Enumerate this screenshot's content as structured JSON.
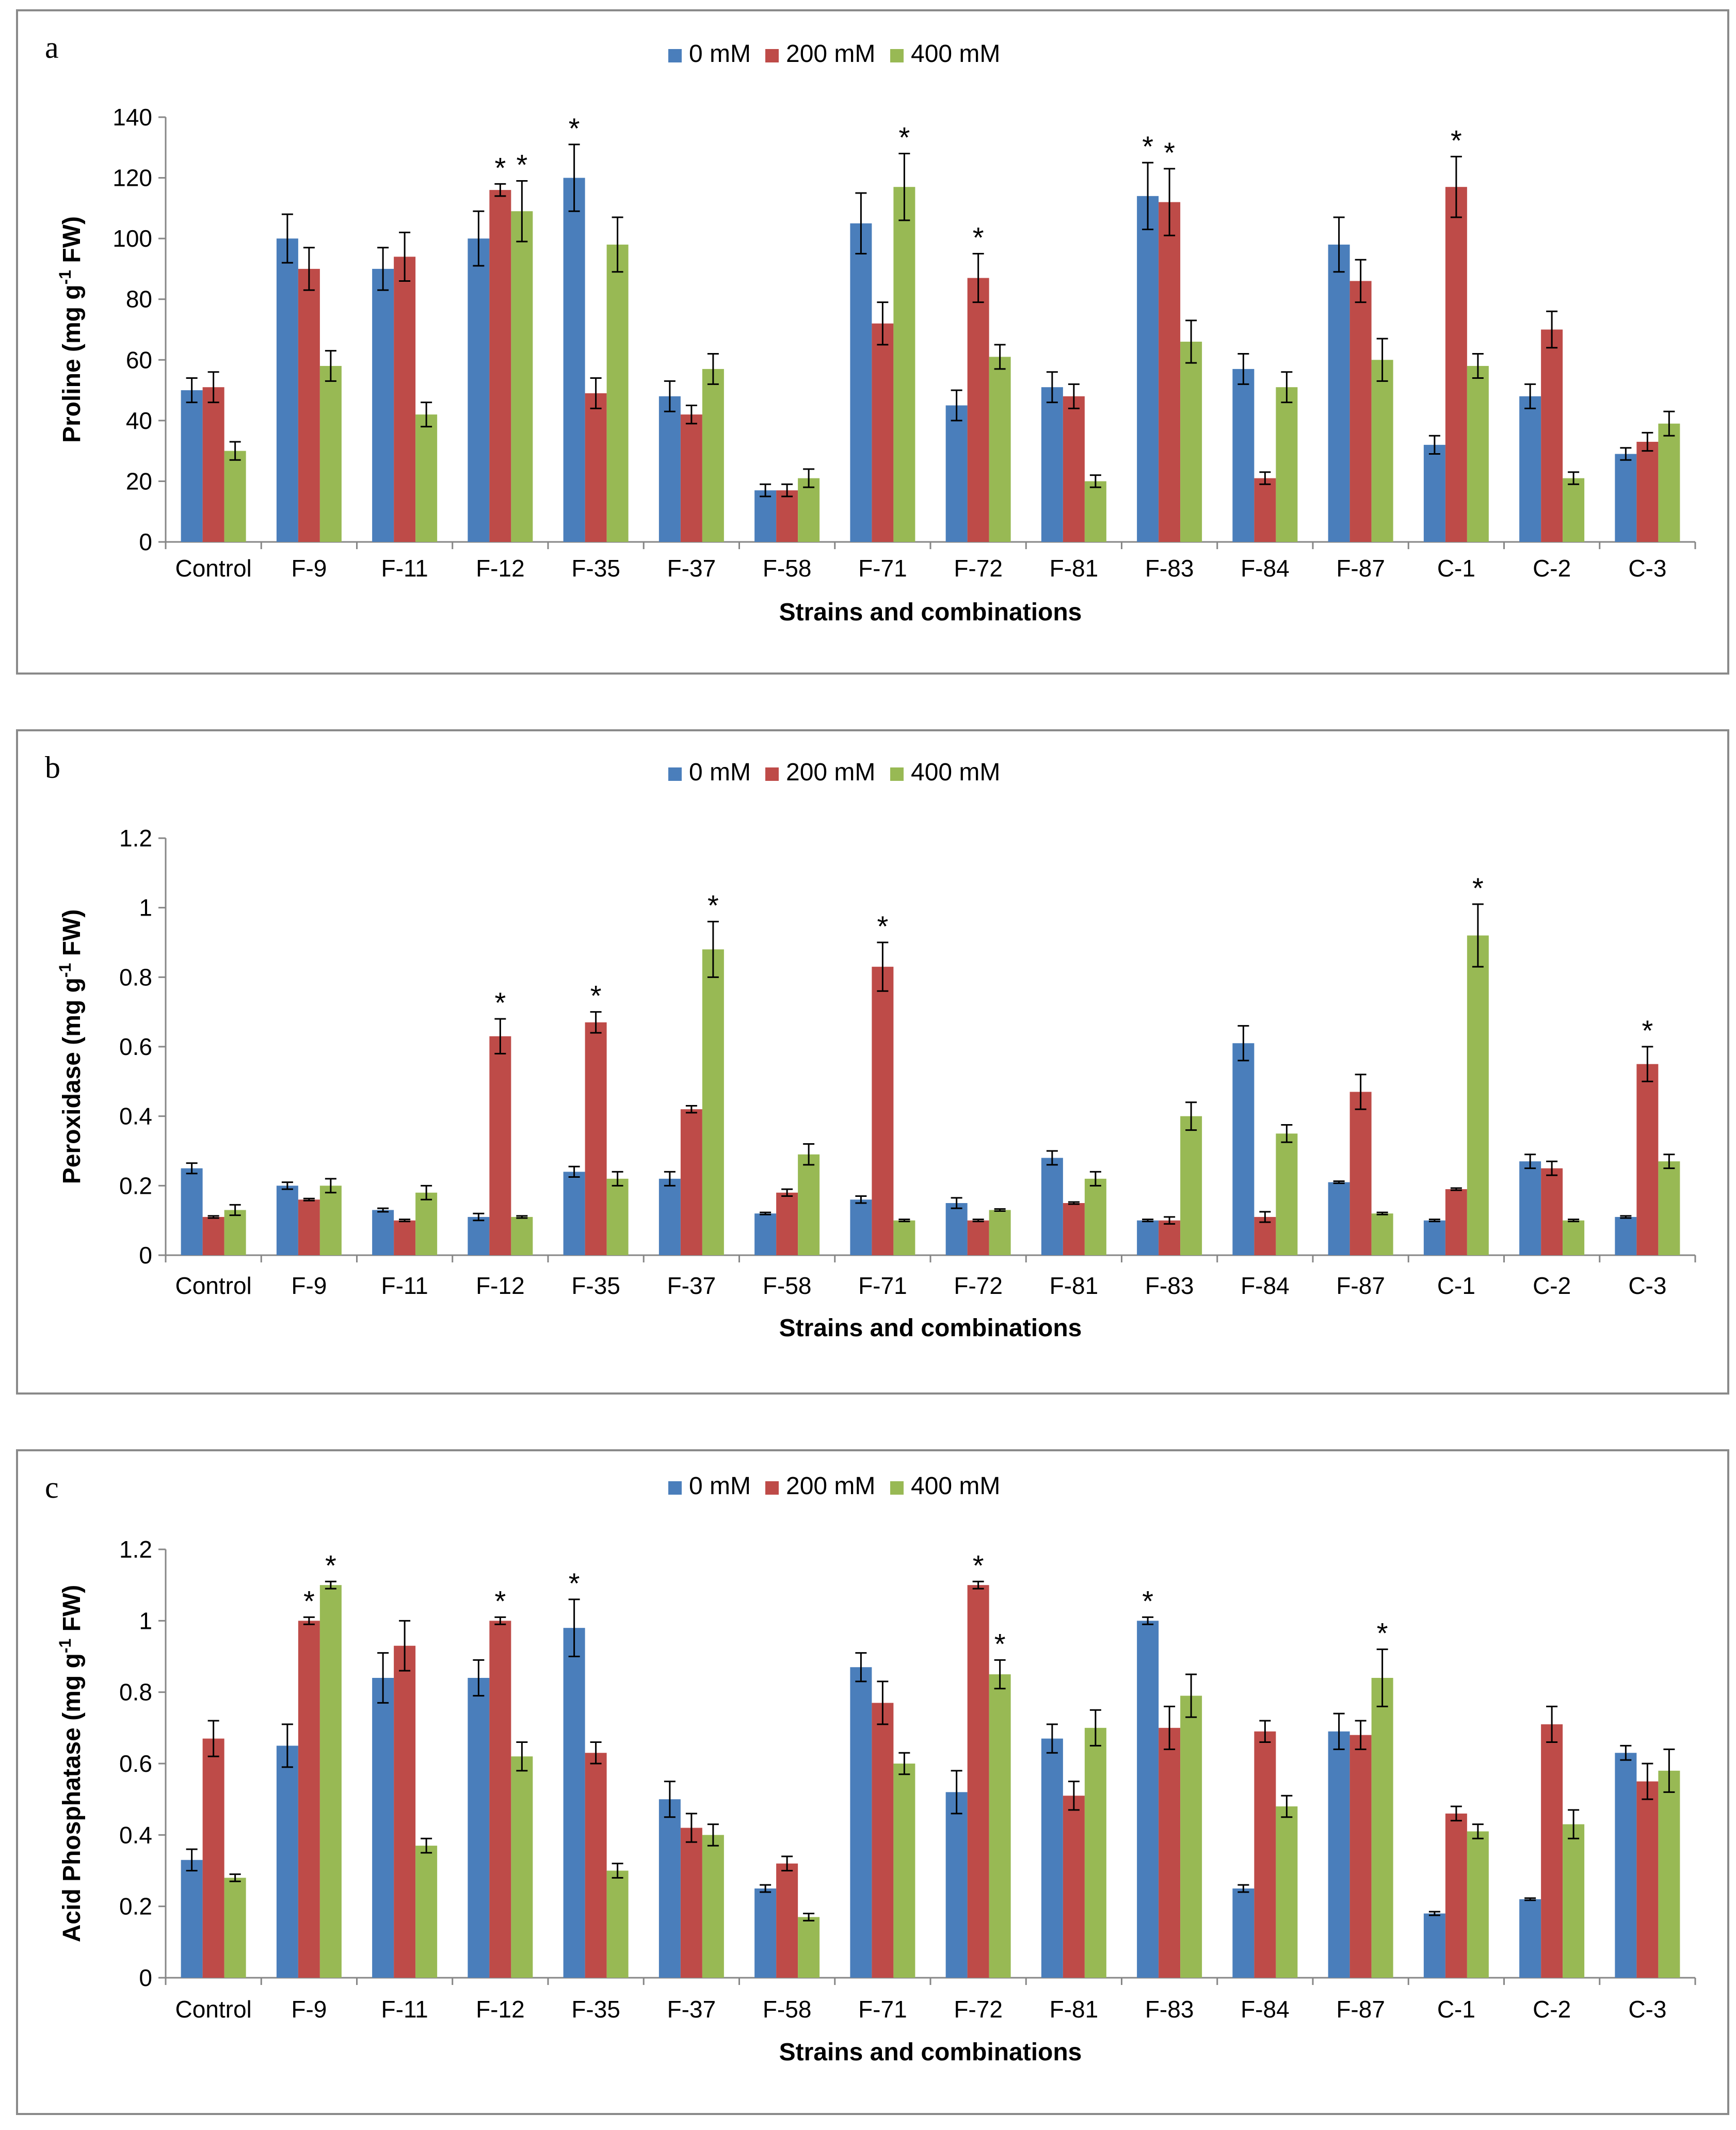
{
  "colors": {
    "series": [
      "#4a7ebb",
      "#be4b48",
      "#98b954"
    ],
    "axis": "#868686",
    "error": "#000000"
  },
  "chart_data": [
    {
      "type": "bar",
      "panel_label": "a",
      "title": "",
      "xlabel": "Strains and combinations",
      "ylabel_main": "Proline (mg g",
      "ylabel_sup": "-1",
      "ylabel_tail": " FW)",
      "ylim": [
        0,
        140
      ],
      "yticks": [
        0,
        20,
        40,
        60,
        80,
        100,
        120,
        140
      ],
      "ytick_labels": [
        "0",
        "20",
        "40",
        "60",
        "80",
        "100",
        "120",
        "140"
      ],
      "categories": [
        "Control",
        "F-9",
        "F-11",
        "F-12",
        "F-35",
        "F-37",
        "F-58",
        "F-71",
        "F-72",
        "F-81",
        "F-83",
        "F-84",
        "F-87",
        "C-1",
        "C-2",
        "C-3"
      ],
      "series": [
        {
          "name": "0 mM",
          "values": [
            50,
            100,
            90,
            100,
            120,
            48,
            17,
            105,
            45,
            51,
            114,
            57,
            98,
            32,
            48,
            29
          ],
          "errors": [
            4,
            8,
            7,
            9,
            11,
            5,
            2,
            10,
            5,
            5,
            11,
            5,
            9,
            3,
            4,
            2
          ]
        },
        {
          "name": "200 mM",
          "values": [
            51,
            90,
            94,
            116,
            49,
            42,
            17,
            72,
            87,
            48,
            112,
            21,
            86,
            117,
            70,
            33
          ],
          "errors": [
            5,
            7,
            8,
            2,
            5,
            3,
            2,
            7,
            8,
            4,
            11,
            2,
            7,
            10,
            6,
            3
          ]
        },
        {
          "name": "400 mM",
          "values": [
            30,
            58,
            42,
            109,
            98,
            57,
            21,
            117,
            61,
            20,
            66,
            51,
            60,
            58,
            21,
            39
          ],
          "errors": [
            3,
            5,
            4,
            10,
            9,
            5,
            3,
            11,
            4,
            2,
            7,
            5,
            7,
            4,
            2,
            4
          ]
        }
      ],
      "significance": [
        {
          "category": "F-12",
          "series": "200 mM",
          "label": "*"
        },
        {
          "category": "F-12",
          "series": "400 mM",
          "label": "*"
        },
        {
          "category": "F-35",
          "series": "0 mM",
          "label": "*"
        },
        {
          "category": "F-71",
          "series": "400 mM",
          "label": "*"
        },
        {
          "category": "F-72",
          "series": "200 mM",
          "label": "*"
        },
        {
          "category": "F-83",
          "series": "0 mM",
          "label": "*"
        },
        {
          "category": "F-83",
          "series": "200 mM",
          "label": "*"
        },
        {
          "category": "C-1",
          "series": "200 mM",
          "label": "*"
        }
      ]
    },
    {
      "type": "bar",
      "panel_label": "b",
      "title": "",
      "xlabel": "Strains and combinations",
      "ylabel_main": "Peroxidase (mg g",
      "ylabel_sup": "-1",
      "ylabel_tail": " FW)",
      "ylim": [
        0,
        1.2
      ],
      "yticks": [
        0,
        0.2,
        0.4,
        0.6,
        0.8,
        1.0,
        1.2
      ],
      "ytick_labels": [
        "0",
        "0.2",
        "0.4",
        "0.6",
        "0.8",
        "1",
        "1.2"
      ],
      "categories": [
        "Control",
        "F-9",
        "F-11",
        "F-12",
        "F-35",
        "F-37",
        "F-58",
        "F-71",
        "F-72",
        "F-81",
        "F-83",
        "F-84",
        "F-87",
        "C-1",
        "C-2",
        "C-3"
      ],
      "series": [
        {
          "name": "0 mM",
          "values": [
            0.25,
            0.2,
            0.13,
            0.11,
            0.24,
            0.22,
            0.12,
            0.16,
            0.15,
            0.28,
            0.1,
            0.61,
            0.21,
            0.1,
            0.27,
            0.11
          ],
          "errors": [
            0.015,
            0.01,
            0.005,
            0.01,
            0.015,
            0.02,
            0.003,
            0.01,
            0.015,
            0.02,
            0.003,
            0.05,
            0.003,
            0.003,
            0.02,
            0.003
          ]
        },
        {
          "name": "200 mM",
          "values": [
            0.11,
            0.16,
            0.1,
            0.63,
            0.67,
            0.42,
            0.18,
            0.83,
            0.1,
            0.15,
            0.1,
            0.11,
            0.47,
            0.19,
            0.25,
            0.55
          ],
          "errors": [
            0.003,
            0.003,
            0.003,
            0.05,
            0.03,
            0.01,
            0.01,
            0.07,
            0.003,
            0.003,
            0.01,
            0.015,
            0.05,
            0.003,
            0.02,
            0.05
          ]
        },
        {
          "name": "400 mM",
          "values": [
            0.13,
            0.2,
            0.18,
            0.11,
            0.22,
            0.88,
            0.29,
            0.1,
            0.13,
            0.22,
            0.4,
            0.35,
            0.12,
            0.92,
            0.1,
            0.27
          ],
          "errors": [
            0.015,
            0.02,
            0.02,
            0.003,
            0.02,
            0.08,
            0.03,
            0.003,
            0.003,
            0.02,
            0.04,
            0.025,
            0.003,
            0.09,
            0.003,
            0.02
          ]
        }
      ],
      "significance": [
        {
          "category": "F-12",
          "series": "200 mM",
          "label": "*"
        },
        {
          "category": "F-35",
          "series": "200 mM",
          "label": "*"
        },
        {
          "category": "F-37",
          "series": "400 mM",
          "label": "*"
        },
        {
          "category": "F-71",
          "series": "200 mM",
          "label": "*"
        },
        {
          "category": "C-1",
          "series": "400 mM",
          "label": "*"
        },
        {
          "category": "C-3",
          "series": "200 mM",
          "label": "*"
        }
      ]
    },
    {
      "type": "bar",
      "panel_label": "c",
      "title": "",
      "xlabel": "Strains and combinations",
      "ylabel_main": "Acid Phosphatase (mg g",
      "ylabel_sup": "-1",
      "ylabel_tail": " FW)",
      "ylim": [
        0,
        1.2
      ],
      "yticks": [
        0,
        0.2,
        0.4,
        0.6,
        0.8,
        1.0,
        1.2
      ],
      "ytick_labels": [
        "0",
        "0.2",
        "0.4",
        "0.6",
        "0.8",
        "1",
        "1.2"
      ],
      "categories": [
        "Control",
        "F-9",
        "F-11",
        "F-12",
        "F-35",
        "F-37",
        "F-58",
        "F-71",
        "F-72",
        "F-81",
        "F-83",
        "F-84",
        "F-87",
        "C-1",
        "C-2",
        "C-3"
      ],
      "series": [
        {
          "name": "0 mM",
          "values": [
            0.33,
            0.65,
            0.84,
            0.84,
            0.98,
            0.5,
            0.25,
            0.87,
            0.52,
            0.67,
            1.0,
            0.25,
            0.69,
            0.18,
            0.22,
            0.63
          ],
          "errors": [
            0.03,
            0.06,
            0.07,
            0.05,
            0.08,
            0.05,
            0.01,
            0.04,
            0.06,
            0.04,
            0.01,
            0.01,
            0.05,
            0.005,
            0.003,
            0.02
          ]
        },
        {
          "name": "200 mM",
          "values": [
            0.67,
            1.0,
            0.93,
            1.0,
            0.63,
            0.42,
            0.32,
            0.77,
            1.1,
            0.51,
            0.7,
            0.69,
            0.68,
            0.46,
            0.71,
            0.55
          ],
          "errors": [
            0.05,
            0.01,
            0.07,
            0.01,
            0.03,
            0.04,
            0.02,
            0.06,
            0.01,
            0.04,
            0.06,
            0.03,
            0.04,
            0.02,
            0.05,
            0.05
          ]
        },
        {
          "name": "400 mM",
          "values": [
            0.28,
            1.1,
            0.37,
            0.62,
            0.3,
            0.4,
            0.17,
            0.6,
            0.85,
            0.7,
            0.79,
            0.48,
            0.84,
            0.41,
            0.43,
            0.58
          ],
          "errors": [
            0.01,
            0.01,
            0.02,
            0.04,
            0.02,
            0.03,
            0.01,
            0.03,
            0.04,
            0.05,
            0.06,
            0.03,
            0.08,
            0.02,
            0.04,
            0.06
          ]
        }
      ],
      "significance": [
        {
          "category": "F-9",
          "series": "200 mM",
          "label": "*"
        },
        {
          "category": "F-9",
          "series": "400 mM",
          "label": "*"
        },
        {
          "category": "F-12",
          "series": "200 mM",
          "label": "*"
        },
        {
          "category": "F-35",
          "series": "0 mM",
          "label": "*"
        },
        {
          "category": "F-72",
          "series": "200 mM",
          "label": "*"
        },
        {
          "category": "F-72",
          "series": "400 mM",
          "label": "*"
        },
        {
          "category": "F-83",
          "series": "0 mM",
          "label": "*"
        },
        {
          "category": "F-87",
          "series": "400 mM",
          "label": "*"
        }
      ]
    }
  ]
}
